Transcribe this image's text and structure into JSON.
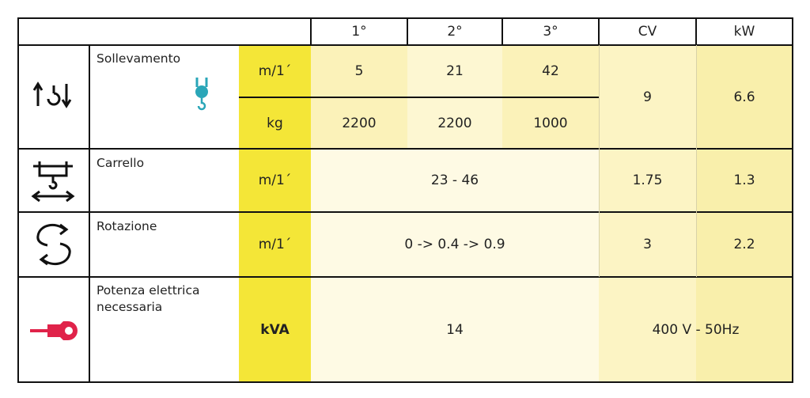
{
  "header": {
    "columns": [
      "1°",
      "2°",
      "3°",
      "CV",
      "kW"
    ]
  },
  "rows": [
    {
      "label": "Sollevamento",
      "units": [
        "m/1´",
        "kg"
      ],
      "values": [
        [
          5,
          21,
          42
        ],
        [
          2200,
          2200,
          1000
        ]
      ],
      "cv": 9,
      "kw": 6.6
    },
    {
      "label": "Carrello",
      "unit": "m/1´",
      "value": "23 - 46",
      "cv": 1.75,
      "kw": 1.3
    },
    {
      "label": "Rotazione",
      "unit": "m/1´",
      "value": "0 -> 0.4 -> 0.9",
      "cv": 3,
      "kw": 2.2
    },
    {
      "label": "Potenza elettrica necessaria",
      "unit": "kVA",
      "value": 14,
      "supply": "400 V - 50Hz"
    }
  ]
}
